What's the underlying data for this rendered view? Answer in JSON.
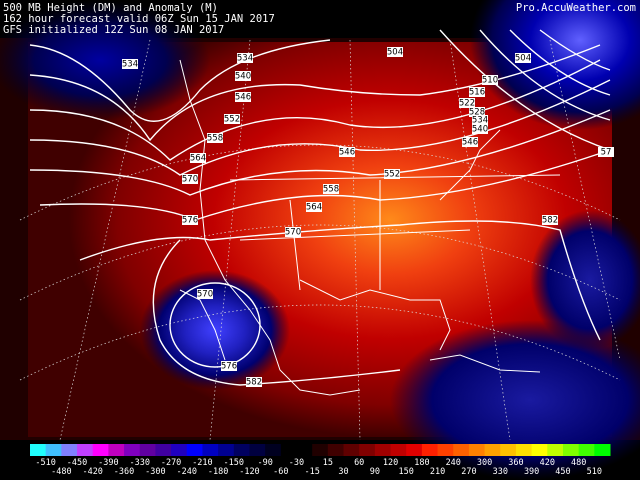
{
  "header": {
    "title": "500 MB Height (DM) and Anomaly (M)",
    "valid": "162 hour forecast valid 06Z Sun 15 JAN 2017",
    "init": "GFS initialized 12Z Sun 08 JAN 2017",
    "brand": "Pro.AccuWeather.com"
  },
  "contour_labels": [
    534,
    534,
    540,
    546,
    552,
    558,
    564,
    570,
    576,
    546,
    552,
    558,
    564,
    570,
    582,
    504,
    504,
    510,
    516,
    522,
    528,
    534,
    540,
    546,
    570,
    576,
    582,
    "57"
  ],
  "colorbar": {
    "labels": [
      -510,
      -480,
      -450,
      -420,
      -390,
      -360,
      -330,
      -300,
      -270,
      -240,
      -210,
      -180,
      -150,
      -120,
      -90,
      -60,
      -30,
      -15,
      15,
      30,
      60,
      90,
      120,
      150,
      180,
      210,
      240,
      270,
      300,
      330,
      360,
      390,
      420,
      450,
      480,
      510
    ]
  }
}
